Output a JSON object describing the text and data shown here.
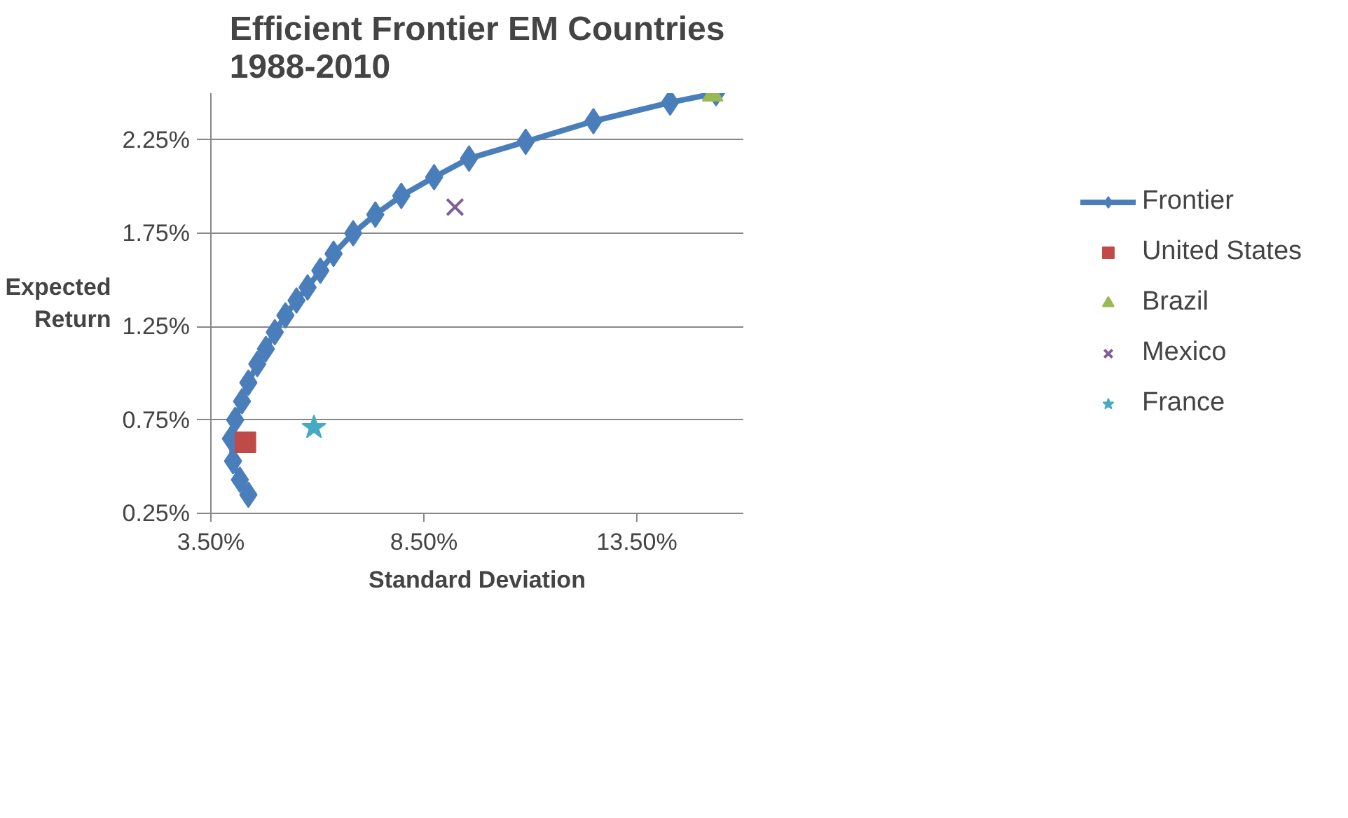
{
  "chart_data": {
    "type": "scatter",
    "title": "Efficient Frontier EM Countries\n1988-2010",
    "xlabel": "Standard Deviation",
    "ylabel": "Expected Return",
    "xlim": [
      3.5,
      16
    ],
    "ylim": [
      0.25,
      2.5
    ],
    "xticks": [
      {
        "value": 3.5,
        "label": "3.50%"
      },
      {
        "value": 8.5,
        "label": "8.50%"
      },
      {
        "value": 13.5,
        "label": "13.50%"
      }
    ],
    "yticks": [
      {
        "value": 0.25,
        "label": "0.25%"
      },
      {
        "value": 0.75,
        "label": "0.75%"
      },
      {
        "value": 1.25,
        "label": "1.25%"
      },
      {
        "value": 1.75,
        "label": "1.75%"
      },
      {
        "value": 2.25,
        "label": "2.25%"
      }
    ],
    "grid": "y",
    "legend": "right",
    "series": [
      {
        "name": "Frontier",
        "type": "line",
        "marker": "diamond",
        "color": "#4a7ebb",
        "x": [
          4.38,
          4.18,
          4.02,
          3.97,
          4.07,
          4.23,
          4.38,
          4.59,
          4.79,
          5.0,
          5.25,
          5.51,
          5.77,
          6.07,
          6.38,
          6.84,
          7.36,
          7.97,
          8.74,
          9.56,
          10.89,
          12.48,
          14.28,
          15.36
        ],
        "values": [
          0.35,
          0.43,
          0.53,
          0.65,
          0.75,
          0.85,
          0.95,
          1.05,
          1.13,
          1.22,
          1.31,
          1.39,
          1.46,
          1.55,
          1.64,
          1.75,
          1.85,
          1.95,
          2.05,
          2.15,
          2.24,
          2.35,
          2.45,
          2.5
        ]
      },
      {
        "name": "United States",
        "marker": "square",
        "color": "#be4b48",
        "x": [
          4.31
        ],
        "values": [
          0.63
        ]
      },
      {
        "name": "Brazil",
        "marker": "triangle",
        "color": "#98b954",
        "x": [
          15.28
        ],
        "values": [
          2.49
        ]
      },
      {
        "name": "Mexico",
        "marker": "cross",
        "color": "#7d5fa0",
        "x": [
          9.23
        ],
        "values": [
          1.89
        ]
      },
      {
        "name": "France",
        "marker": "star",
        "color": "#46aac5",
        "x": [
          5.92
        ],
        "values": [
          0.71
        ]
      }
    ]
  }
}
